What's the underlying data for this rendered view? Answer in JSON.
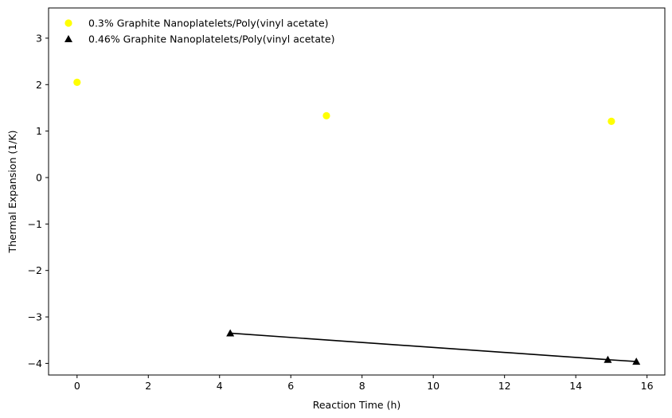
{
  "chart_data": {
    "type": "scatter",
    "xlabel": "Reaction Time (h)",
    "ylabel": "Thermal Expansion (1/K)",
    "xlim": [
      -0.8,
      16.5
    ],
    "ylim": [
      -4.25,
      3.65
    ],
    "xticks": [
      0,
      2,
      4,
      6,
      8,
      10,
      12,
      14,
      16
    ],
    "yticks": [
      -4,
      -3,
      -2,
      -1,
      0,
      1,
      2,
      3
    ],
    "x_tick_labels": [
      "0",
      "2",
      "4",
      "6",
      "8",
      "10",
      "12",
      "14",
      "16"
    ],
    "y_tick_labels": [
      "−4",
      "−3",
      "−2",
      "−1",
      "0",
      "1",
      "2",
      "3"
    ],
    "grid": false,
    "legend_position": "top-left",
    "series": [
      {
        "name": "0.3% Graphite Nanoplatelets/Poly(vinyl acetate)",
        "marker": "circle",
        "color": "#ffff00",
        "line": false,
        "x": [
          0,
          7,
          15
        ],
        "y": [
          2.05,
          1.33,
          1.21
        ]
      },
      {
        "name": "0.46% Graphite Nanoplatelets/Poly(vinyl acetate)",
        "marker": "triangle",
        "color": "#000000",
        "line": true,
        "x": [
          4.3,
          14.9,
          15.7
        ],
        "y": [
          -3.35,
          -3.92,
          -3.96
        ]
      }
    ]
  }
}
